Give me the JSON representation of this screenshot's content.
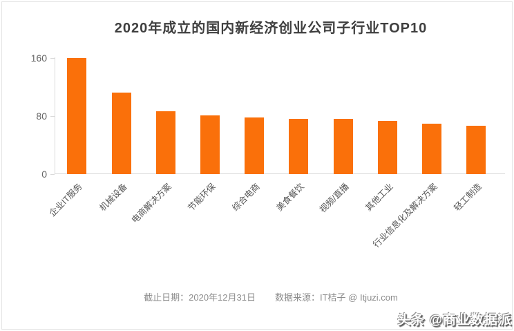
{
  "title": "2020年成立的国内新经济创业公司子行业TOP10",
  "chart_data": {
    "type": "bar",
    "title": "2020年成立的国内新经济创业公司子行业TOP10",
    "categories": [
      "企业IT服务",
      "机械设备",
      "电商解决方案",
      "节能环保",
      "综合电商",
      "美食餐饮",
      "视频/直播",
      "其他工业",
      "行业信息化及解决方案",
      "轻工制造"
    ],
    "values": [
      160,
      112,
      86,
      81,
      78,
      76,
      76,
      73,
      69,
      66
    ],
    "xlabel": "",
    "ylabel": "",
    "ylim": [
      0,
      160
    ],
    "yticks": [
      0,
      80,
      160
    ],
    "grid": "off",
    "legend": "none",
    "bar_color": "#fa700a",
    "x_label_rotation_deg": 45
  },
  "footer": {
    "deadline": "截止日期：2020年12月31日",
    "source": "数据来源：IT桔子 @ Itjuzi.com"
  },
  "watermark": "头条 @商业数据派",
  "colors": {
    "bar": "#fa700a",
    "title_text": "#3f3f3f",
    "axis_line": "#d9d9d9",
    "tick_label": "#666666",
    "category_label": "#555555",
    "footer_text": "#8c8c8c",
    "background": "#ffffff"
  }
}
